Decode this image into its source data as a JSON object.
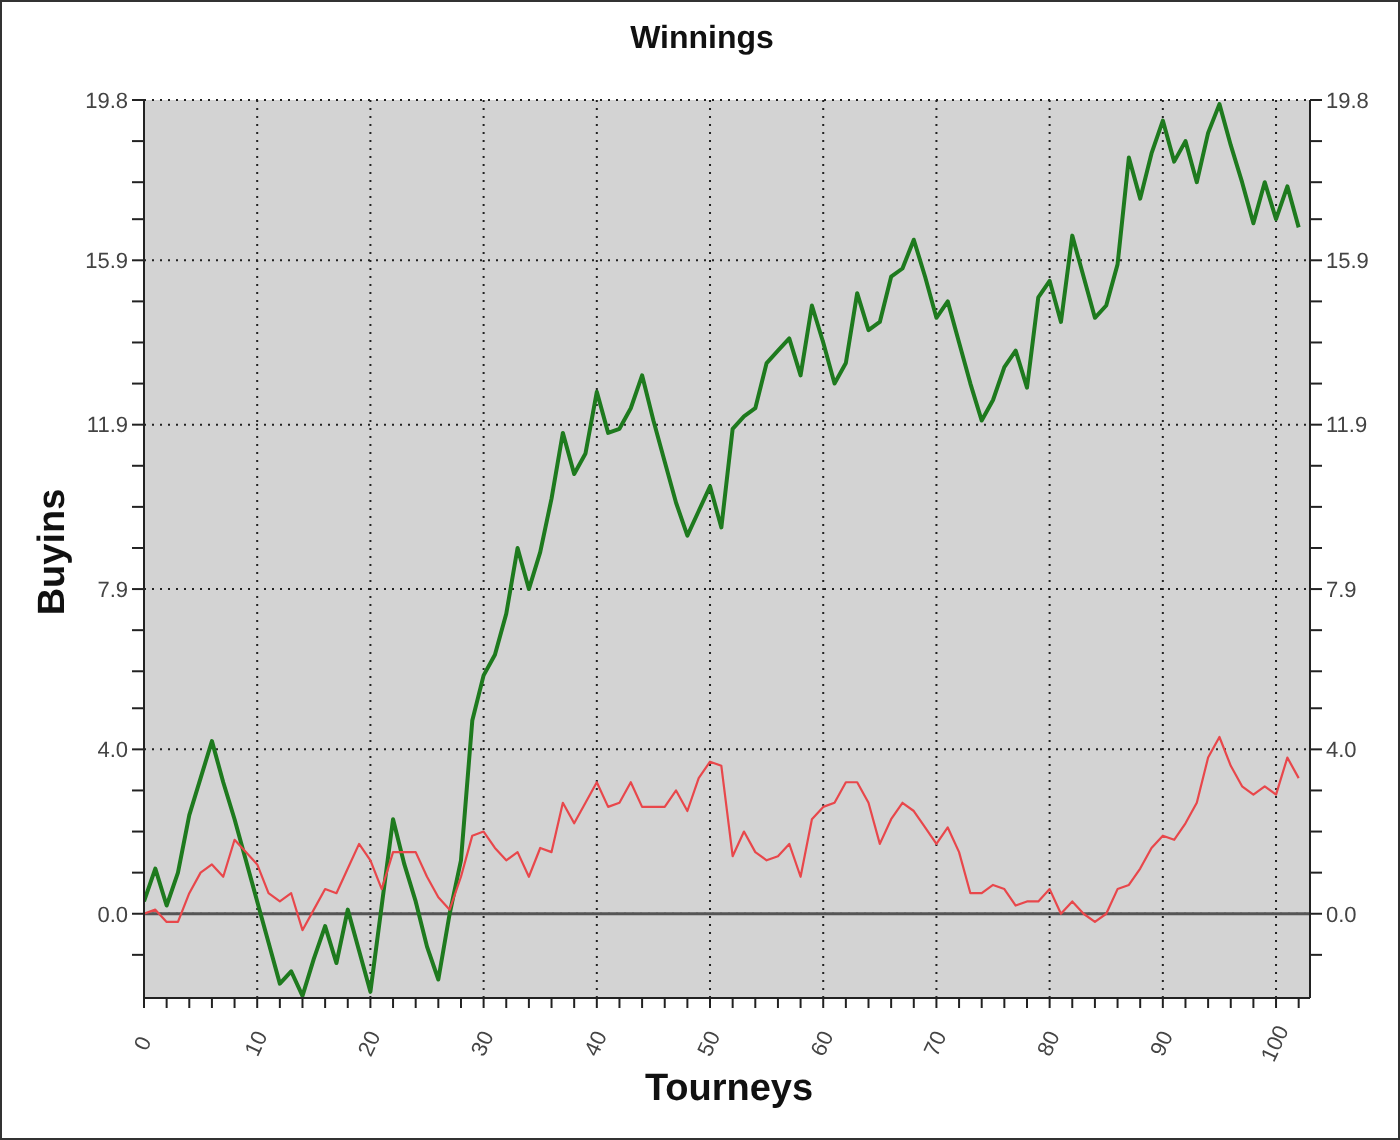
{
  "chart_data": {
    "type": "line",
    "title": "Winnings",
    "xlabel": "Tourneys",
    "ylabel": "Buyins",
    "x": [
      0,
      1,
      2,
      3,
      4,
      5,
      6,
      7,
      8,
      9,
      10,
      11,
      12,
      13,
      14,
      15,
      16,
      17,
      18,
      19,
      20,
      21,
      22,
      23,
      24,
      25,
      26,
      27,
      28,
      29,
      30,
      31,
      32,
      33,
      34,
      35,
      36,
      37,
      38,
      39,
      40,
      41,
      42,
      43,
      44,
      45,
      46,
      47,
      48,
      49,
      50,
      51,
      52,
      53,
      54,
      55,
      56,
      57,
      58,
      59,
      60,
      61,
      62,
      63,
      64,
      65,
      66,
      67,
      68,
      69,
      70,
      71,
      72,
      73,
      74,
      75,
      76,
      77,
      78,
      79,
      80,
      81,
      82,
      83,
      84,
      85,
      86,
      87,
      88,
      89,
      90,
      91,
      92,
      93,
      94,
      95,
      96,
      97,
      98,
      99,
      100,
      101,
      102
    ],
    "series": [
      {
        "color": "#1e7a1e",
        "values": [
          0.3,
          1.1,
          0.2,
          1.0,
          2.4,
          3.3,
          4.2,
          3.2,
          2.3,
          1.3,
          0.3,
          -0.7,
          -1.7,
          -1.4,
          -2.0,
          -1.1,
          -0.3,
          -1.2,
          0.1,
          -0.9,
          -1.9,
          0.2,
          2.3,
          1.2,
          0.3,
          -0.8,
          -1.6,
          0.0,
          1.3,
          4.7,
          5.8,
          6.3,
          7.3,
          8.9,
          7.9,
          8.8,
          10.1,
          11.7,
          10.7,
          11.2,
          12.7,
          11.7,
          11.8,
          12.3,
          13.1,
          12.0,
          11.0,
          10.0,
          9.2,
          9.8,
          10.4,
          9.4,
          11.8,
          12.1,
          12.3,
          13.4,
          13.7,
          14.0,
          13.1,
          14.8,
          13.9,
          12.9,
          13.4,
          15.1,
          14.2,
          14.4,
          15.5,
          15.7,
          16.4,
          15.5,
          14.5,
          14.9,
          13.9,
          12.9,
          12.0,
          12.5,
          13.3,
          13.7,
          12.8,
          15.0,
          15.4,
          14.4,
          16.5,
          15.5,
          14.5,
          14.8,
          15.8,
          18.4,
          17.4,
          18.5,
          19.3,
          18.3,
          18.8,
          17.8,
          19.0,
          19.7,
          18.7,
          17.8,
          16.8,
          17.8,
          16.9,
          17.7,
          16.7
        ]
      },
      {
        "color": "#e8474b",
        "values": [
          0.0,
          0.1,
          -0.2,
          -0.2,
          0.5,
          1.0,
          1.2,
          0.9,
          1.8,
          1.5,
          1.2,
          0.5,
          0.3,
          0.5,
          -0.4,
          0.1,
          0.6,
          0.5,
          1.1,
          1.7,
          1.3,
          0.6,
          1.5,
          1.5,
          1.5,
          0.9,
          0.4,
          0.1,
          0.9,
          1.9,
          2.0,
          1.6,
          1.3,
          1.5,
          0.9,
          1.6,
          1.5,
          2.7,
          2.2,
          2.7,
          3.2,
          2.6,
          2.7,
          3.2,
          2.6,
          2.6,
          2.6,
          3.0,
          2.5,
          3.3,
          3.7,
          3.6,
          1.4,
          2.0,
          1.5,
          1.3,
          1.4,
          1.7,
          0.9,
          2.3,
          2.6,
          2.7,
          3.2,
          3.2,
          2.7,
          1.7,
          2.3,
          2.7,
          2.5,
          2.1,
          1.7,
          2.1,
          1.5,
          0.5,
          0.5,
          0.7,
          0.6,
          0.2,
          0.3,
          0.3,
          0.6,
          0.0,
          0.3,
          0.0,
          -0.2,
          0.0,
          0.6,
          0.7,
          1.1,
          1.6,
          1.9,
          1.8,
          2.2,
          2.7,
          3.8,
          4.3,
          3.6,
          3.1,
          2.9,
          3.1,
          2.9,
          3.8,
          3.3
        ]
      }
    ],
    "xlim": [
      0,
      103
    ],
    "xticks": [
      0,
      {
        "value": 2,
        "label": null
      },
      {
        "value": 4,
        "label": null
      },
      {
        "value": 6,
        "label": null
      },
      {
        "value": 8,
        "label": null
      },
      10,
      {
        "value": 12,
        "label": null
      },
      {
        "value": 14,
        "label": null
      },
      {
        "value": 16,
        "label": null
      },
      {
        "value": 18,
        "label": null
      },
      20,
      {
        "value": 22,
        "label": null
      },
      {
        "value": 24,
        "label": null
      },
      {
        "value": 26,
        "label": null
      },
      {
        "value": 28,
        "label": null
      },
      30,
      {
        "value": 32,
        "label": null
      },
      {
        "value": 34,
        "label": null
      },
      {
        "value": 36,
        "label": null
      },
      {
        "value": 38,
        "label": null
      },
      40,
      {
        "value": 42,
        "label": null
      },
      {
        "value": 44,
        "label": null
      },
      {
        "value": 46,
        "label": null
      },
      {
        "value": 48,
        "label": null
      },
      50,
      {
        "value": 52,
        "label": null
      },
      {
        "value": 54,
        "label": null
      },
      {
        "value": 56,
        "label": null
      },
      {
        "value": 58,
        "label": null
      },
      60,
      {
        "value": 62,
        "label": null
      },
      {
        "value": 64,
        "label": null
      },
      {
        "value": 66,
        "label": null
      },
      {
        "value": 68,
        "label": null
      },
      70,
      {
        "value": 72,
        "label": null
      },
      {
        "value": 74,
        "label": null
      },
      {
        "value": 76,
        "label": null
      },
      {
        "value": 78,
        "label": null
      },
      80,
      {
        "value": 82,
        "label": null
      },
      {
        "value": 84,
        "label": null
      },
      {
        "value": 86,
        "label": null
      },
      {
        "value": 88,
        "label": null
      },
      90,
      {
        "value": 92,
        "label": null
      },
      {
        "value": 94,
        "label": null
      },
      {
        "value": 96,
        "label": null
      },
      {
        "value": 98,
        "label": null
      },
      100,
      {
        "value": 102,
        "label": null
      }
    ],
    "ylim": [
      -2.05,
      19.8
    ],
    "yticks": [
      {
        "value": -1,
        "label": null
      },
      {
        "value": 0,
        "label": "0.0"
      },
      {
        "value": 1,
        "label": null
      },
      {
        "value": 2,
        "label": null
      },
      {
        "value": 3,
        "label": null
      },
      {
        "value": 4,
        "label": "4.0"
      },
      {
        "value": 5,
        "label": null
      },
      {
        "value": 5.9,
        "label": null
      },
      {
        "value": 6.9,
        "label": null
      },
      7.9,
      {
        "value": 8.9,
        "label": null
      },
      {
        "value": 9.9,
        "label": null
      },
      {
        "value": 10.9,
        "label": null
      },
      11.9,
      {
        "value": 12.9,
        "label": null
      },
      {
        "value": 13.9,
        "label": null
      },
      {
        "value": 14.9,
        "label": null
      },
      15.9,
      {
        "value": 16.9,
        "label": null
      },
      {
        "value": 17.8,
        "label": null
      },
      {
        "value": 18.8,
        "label": null
      },
      19.8
    ],
    "y2lim": [
      -2.05,
      19.8
    ],
    "y2ticks": [
      {
        "value": -1,
        "label": null
      },
      {
        "value": 0,
        "label": "0.0"
      },
      {
        "value": 1,
        "label": null
      },
      {
        "value": 2,
        "label": null
      },
      {
        "value": 3,
        "label": null
      },
      {
        "value": 4,
        "label": "4.0"
      },
      {
        "value": 5,
        "label": null
      },
      {
        "value": 5.9,
        "label": null
      },
      {
        "value": 6.9,
        "label": null
      },
      7.9,
      {
        "value": 8.9,
        "label": null
      },
      {
        "value": 9.9,
        "label": null
      },
      {
        "value": 10.9,
        "label": null
      },
      11.9,
      {
        "value": 12.9,
        "label": null
      },
      {
        "value": 13.9,
        "label": null
      },
      {
        "value": 14.9,
        "label": null
      },
      15.9,
      {
        "value": 16.9,
        "label": null
      },
      {
        "value": 17.8,
        "label": null
      },
      {
        "value": 18.8,
        "label": null
      },
      19.8
    ],
    "grid": true,
    "marker": "none",
    "line_style": "solid",
    "ref_lines": [
      {
        "axis": "y",
        "value": 0,
        "color": "#555555"
      }
    ]
  }
}
